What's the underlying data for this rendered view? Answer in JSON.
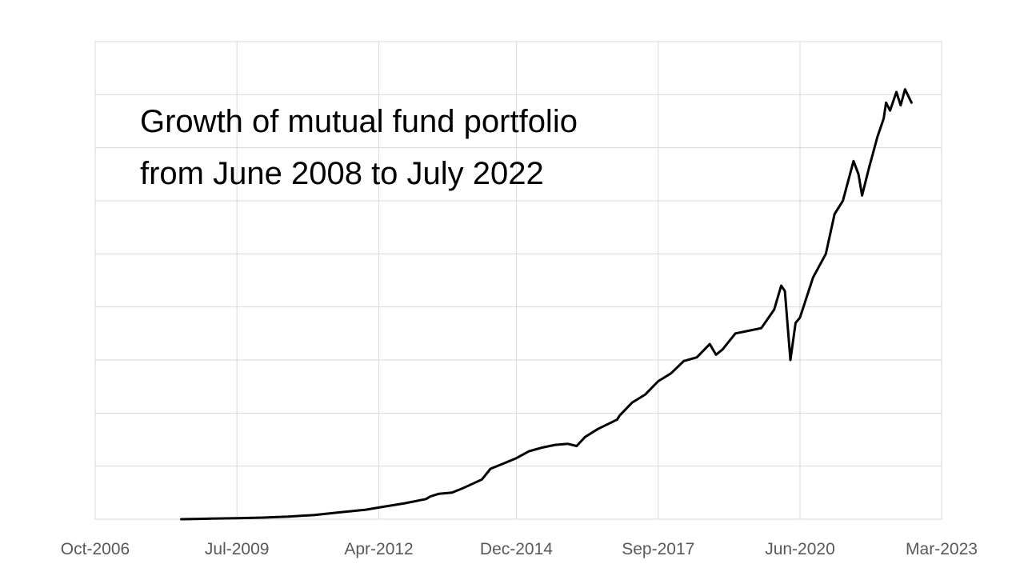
{
  "chart_data": {
    "type": "line",
    "title": [
      "Growth of mutual fund portfolio",
      "from June 2008 to July 2022"
    ],
    "xlabel": "",
    "ylabel": "",
    "x_ticks": [
      "Oct-2006",
      "Jul-2009",
      "Apr-2012",
      "Dec-2014",
      "Sep-2017",
      "Jun-2020",
      "Mar-2023"
    ],
    "x_tick_dates": [
      "2006-10-01",
      "2009-07-01",
      "2012-04-01",
      "2014-12-01",
      "2017-09-01",
      "2020-06-01",
      "2023-03-01"
    ],
    "y_tick_labels_shown": false,
    "ylim": [
      0,
      9
    ],
    "grid": true,
    "legend": "none",
    "series": [
      {
        "color": "#000000",
        "points": [
          [
            "2008-06-01",
            0.0
          ],
          [
            "2009-01-01",
            0.01
          ],
          [
            "2009-07-01",
            0.02
          ],
          [
            "2010-01-01",
            0.03
          ],
          [
            "2010-07-01",
            0.05
          ],
          [
            "2011-01-01",
            0.08
          ],
          [
            "2011-07-01",
            0.13
          ],
          [
            "2012-01-01",
            0.18
          ],
          [
            "2012-04-01",
            0.22
          ],
          [
            "2012-10-01",
            0.3
          ],
          [
            "2013-03-01",
            0.38
          ],
          [
            "2013-04-01",
            0.43
          ],
          [
            "2013-06-01",
            0.48
          ],
          [
            "2013-09-01",
            0.5
          ],
          [
            "2013-12-01",
            0.6
          ],
          [
            "2014-04-01",
            0.75
          ],
          [
            "2014-06-01",
            0.95
          ],
          [
            "2014-09-01",
            1.05
          ],
          [
            "2014-12-01",
            1.15
          ],
          [
            "2015-03-01",
            1.28
          ],
          [
            "2015-06-01",
            1.35
          ],
          [
            "2015-09-01",
            1.4
          ],
          [
            "2015-12-01",
            1.42
          ],
          [
            "2016-02-01",
            1.38
          ],
          [
            "2016-04-01",
            1.55
          ],
          [
            "2016-07-01",
            1.7
          ],
          [
            "2016-10-01",
            1.82
          ],
          [
            "2016-11-15",
            1.88
          ],
          [
            "2016-12-01",
            1.95
          ],
          [
            "2017-03-01",
            2.2
          ],
          [
            "2017-06-01",
            2.35
          ],
          [
            "2017-09-01",
            2.6
          ],
          [
            "2017-12-01",
            2.75
          ],
          [
            "2018-03-01",
            2.98
          ],
          [
            "2018-06-01",
            3.05
          ],
          [
            "2018-09-01",
            3.3
          ],
          [
            "2018-10-15",
            3.1
          ],
          [
            "2018-12-01",
            3.2
          ],
          [
            "2019-03-01",
            3.5
          ],
          [
            "2019-06-01",
            3.55
          ],
          [
            "2019-09-01",
            3.6
          ],
          [
            "2019-12-01",
            3.95
          ],
          [
            "2020-01-20",
            4.4
          ],
          [
            "2020-02-15",
            4.3
          ],
          [
            "2020-03-25",
            3.0
          ],
          [
            "2020-05-01",
            3.7
          ],
          [
            "2020-06-01",
            3.8
          ],
          [
            "2020-09-01",
            4.55
          ],
          [
            "2020-12-01",
            5.0
          ],
          [
            "2021-02-01",
            5.75
          ],
          [
            "2021-04-01",
            6.0
          ],
          [
            "2021-06-15",
            6.75
          ],
          [
            "2021-07-20",
            6.5
          ],
          [
            "2021-08-15",
            6.1
          ],
          [
            "2021-10-01",
            6.6
          ],
          [
            "2021-12-01",
            7.2
          ],
          [
            "2022-01-15",
            7.55
          ],
          [
            "2022-02-01",
            7.85
          ],
          [
            "2022-03-01",
            7.7
          ],
          [
            "2022-04-15",
            8.05
          ],
          [
            "2022-05-15",
            7.8
          ],
          [
            "2022-06-15",
            8.1
          ],
          [
            "2022-07-31",
            7.85
          ]
        ]
      }
    ]
  }
}
